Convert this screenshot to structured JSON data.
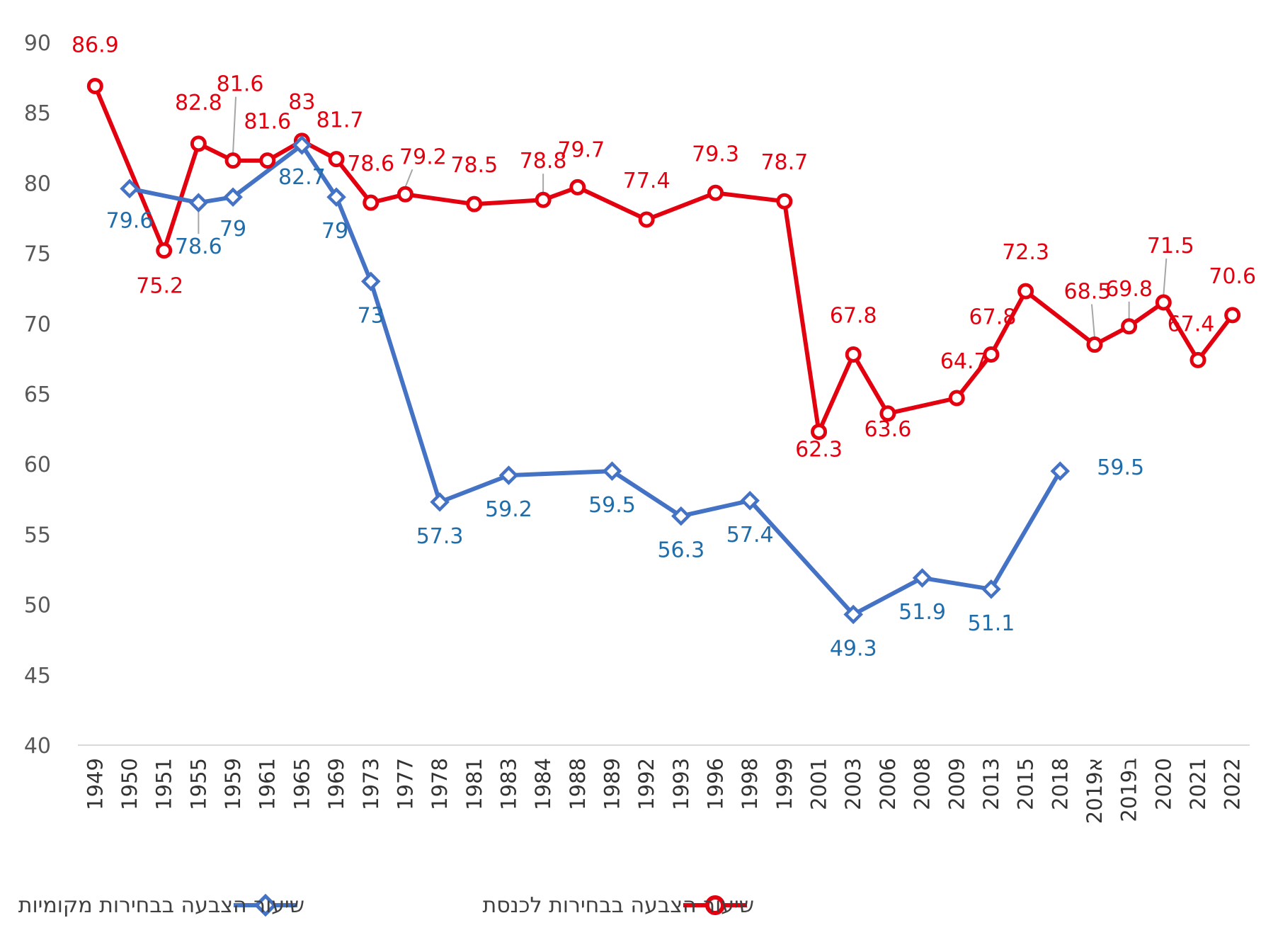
{
  "chart_data": {
    "type": "line",
    "title": "",
    "xlabel": "",
    "ylabel": "",
    "ylim": [
      40,
      90
    ],
    "yticks": [
      40,
      45,
      50,
      55,
      60,
      65,
      70,
      75,
      80,
      85,
      90
    ],
    "grid": false,
    "legend_position": "bottom",
    "categories": [
      "1949",
      "1950",
      "1951",
      "1955",
      "1959",
      "1961",
      "1965",
      "1969",
      "1973",
      "1977",
      "1978",
      "1981",
      "1983",
      "1984",
      "1988",
      "1989",
      "1992",
      "1993",
      "1996",
      "1998",
      "1999",
      "2001",
      "2003",
      "2006",
      "2008",
      "2009",
      "2013",
      "2015",
      "2018",
      "2019א",
      "2019ב",
      "2020",
      "2021",
      "2022"
    ],
    "series": [
      {
        "name": "שיעור הצבעה בבחירות לכנסת",
        "color": "#E3000F",
        "marker": "circle",
        "values": [
          86.9,
          null,
          75.2,
          82.8,
          81.6,
          81.6,
          83,
          81.7,
          78.6,
          79.2,
          null,
          78.5,
          null,
          78.8,
          79.7,
          null,
          77.4,
          null,
          79.3,
          null,
          78.7,
          62.3,
          67.8,
          63.6,
          null,
          64.7,
          67.8,
          72.3,
          null,
          68.5,
          69.8,
          71.5,
          67.4,
          70.6
        ]
      },
      {
        "name": "שיעור הצבעה בבחירות מקומיות",
        "color": "#4472C4",
        "marker": "diamond",
        "values": [
          null,
          79.6,
          null,
          78.6,
          79,
          null,
          82.7,
          79,
          73,
          null,
          57.3,
          null,
          59.2,
          null,
          null,
          59.5,
          null,
          56.3,
          null,
          57.4,
          null,
          null,
          49.3,
          null,
          51.9,
          null,
          51.1,
          null,
          59.5,
          null,
          null,
          null,
          null,
          null
        ]
      }
    ]
  }
}
